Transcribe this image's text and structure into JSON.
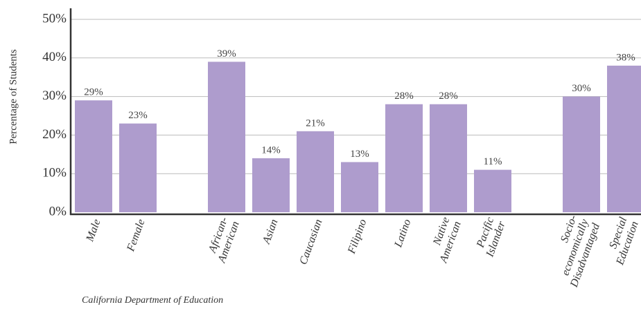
{
  "chart_data": {
    "type": "bar",
    "y_label": "Percentage of Students",
    "source": "California Department of Education",
    "categories": [
      "Male",
      "Female",
      null,
      "African-\nAmerican",
      "Asian",
      "Caucasian",
      "Filipino",
      "Latino",
      "Native\nAmerican",
      "Pacific\nIslander",
      null,
      "Socio-\neconomically\nDisadvantaged",
      "Special\nEducation"
    ],
    "values": [
      29,
      23,
      null,
      39,
      14,
      21,
      13,
      28,
      28,
      11,
      null,
      30,
      38
    ],
    "value_labels": [
      "29%",
      "23%",
      null,
      "39%",
      "14%",
      "21%",
      "13%",
      "28%",
      "28%",
      "11%",
      null,
      "30%",
      "38%"
    ],
    "color": "#ae9ccd",
    "ylim": [
      0,
      50
    ],
    "yticks": [
      {
        "value": 0,
        "label": "0%"
      },
      {
        "value": 10,
        "label": "10%"
      },
      {
        "value": 20,
        "label": "20%"
      },
      {
        "value": 30,
        "label": "30%"
      },
      {
        "value": 40,
        "label": "40%"
      },
      {
        "value": 50,
        "label": "50%"
      }
    ],
    "grid": true
  }
}
